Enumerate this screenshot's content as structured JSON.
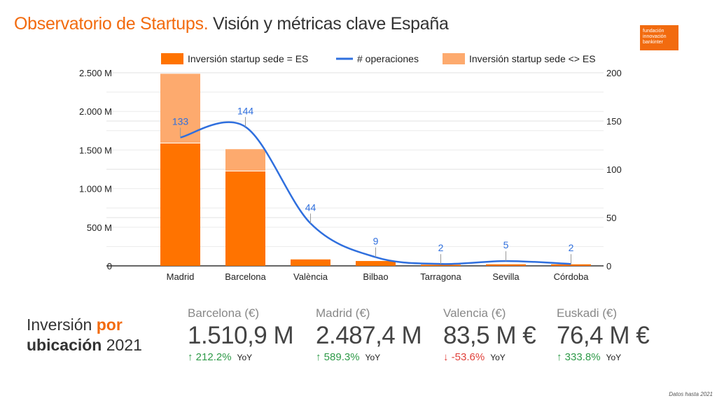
{
  "header": {
    "title_accent": "Observatorio de Startups.",
    "title_rest": "Visión y métricas clave España",
    "logo_lines": [
      "fundación",
      "innovación",
      "bankinter"
    ]
  },
  "colors": {
    "es": "#ff7300",
    "non_es": "#fdaa6e",
    "line": "#2f6fde",
    "accent": "#f26b0f"
  },
  "chart_data": {
    "type": "bar+line",
    "categories": [
      "Madrid",
      "Barcelona",
      "València",
      "Bilbao",
      "Tarragona",
      "Sevilla",
      "Córdoba"
    ],
    "series": [
      {
        "name": "Inversión startup sede = ES",
        "type": "stacked-bar",
        "axis": "left",
        "values": [
          1585,
          1223,
          83.5,
          63,
          15,
          20,
          20
        ]
      },
      {
        "name": "# operaciones",
        "type": "smooth-line",
        "axis": "right",
        "values": [
          133,
          144,
          44,
          9,
          2,
          5,
          2
        ],
        "labels": [
          "133",
          "144",
          "44",
          "9",
          "2",
          "5",
          "2"
        ]
      },
      {
        "name": "Inversión startup sede <> ES",
        "type": "stacked-bar",
        "axis": "left",
        "values": [
          902,
          288,
          0,
          0,
          0,
          0,
          0
        ]
      }
    ],
    "left_axis": {
      "ylim": [
        0,
        2500
      ],
      "ticks": [
        0,
        500,
        1000,
        1500,
        2000,
        2500
      ],
      "tick_labels": [
        "0",
        "500 M",
        "1.000 M",
        "1.500 M",
        "2.000 M",
        "2.500 M"
      ]
    },
    "right_axis": {
      "ylim": [
        0,
        200
      ],
      "ticks": [
        0,
        50,
        100,
        150,
        200
      ],
      "tick_labels": [
        "0",
        "50",
        "100",
        "150",
        "200"
      ]
    },
    "legend": "top",
    "grid": true
  },
  "kpis": {
    "heading": {
      "w1": "Inversión",
      "w2": "por",
      "w3": "ubicación",
      "w4": "2021"
    },
    "items": [
      {
        "label": "Barcelona (€)",
        "value": "1.510,9 M",
        "change": "212.2%",
        "dir": "up",
        "yoy": "YoY"
      },
      {
        "label": "Madrid (€)",
        "value": "2.487,4 M",
        "change": "589.3%",
        "dir": "up",
        "yoy": "YoY"
      },
      {
        "label": "Valencia (€)",
        "value": "83,5 M €",
        "change": "-53.6%",
        "dir": "down",
        "yoy": "YoY"
      },
      {
        "label": "Euskadi (€)",
        "value": "76,4 M €",
        "change": "333.8%",
        "dir": "up",
        "yoy": "YoY"
      }
    ]
  },
  "footer": {
    "note": "Datos hasta 2021"
  }
}
